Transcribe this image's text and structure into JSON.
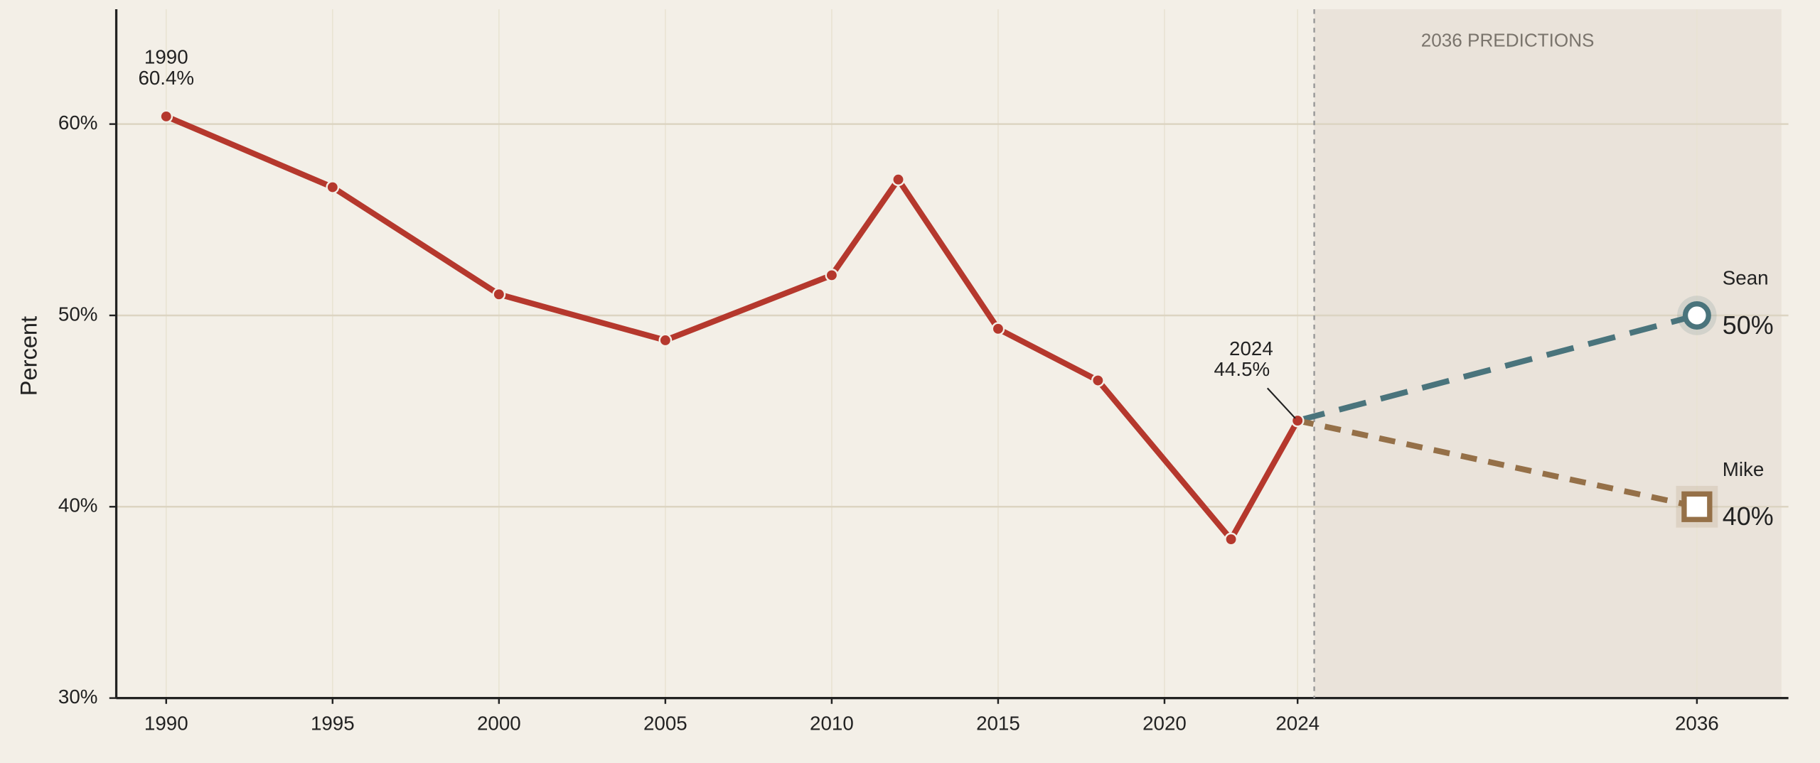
{
  "chart_data": {
    "type": "line",
    "ylabel": "Percent",
    "annotation": "2036 PREDICTIONS",
    "prediction_start": 2024.5,
    "xlim": [
      1988.5,
      2038.75
    ],
    "ylim": [
      30,
      66
    ],
    "xticks": [
      1990,
      1995,
      2000,
      2005,
      2010,
      2015,
      2020,
      2024,
      2036
    ],
    "yticks": [
      {
        "value": 30,
        "label": "30%"
      },
      {
        "value": 40,
        "label": "40%"
      },
      {
        "value": 50,
        "label": "50%"
      },
      {
        "value": 60,
        "label": "60%"
      }
    ],
    "grid": true,
    "series": [
      {
        "color": "#b5382d",
        "style": "solid",
        "marker": "circle",
        "x": [
          1990,
          1995,
          2000,
          2005,
          2010,
          2012,
          2015,
          2018,
          2022,
          2024
        ],
        "values": [
          60.4,
          56.7,
          51.1,
          48.7,
          52.1,
          57.1,
          49.3,
          46.6,
          38.3,
          44.5
        ],
        "value_labels": [
          "60.4%",
          null,
          null,
          null,
          null,
          null,
          null,
          null,
          null,
          "44.5%"
        ]
      },
      {
        "name": "Sean",
        "color": "#4a747c",
        "style": "dashed",
        "marker": "circle",
        "x": [
          2024,
          2036
        ],
        "values": [
          44.5,
          50
        ],
        "value_labels": [
          null,
          "50%"
        ]
      },
      {
        "name": "Mike",
        "color": "#957048",
        "style": "dashed",
        "marker": "square",
        "x": [
          2024,
          2036
        ],
        "values": [
          44.5,
          40
        ],
        "value_labels": [
          null,
          "40%"
        ]
      }
    ]
  }
}
